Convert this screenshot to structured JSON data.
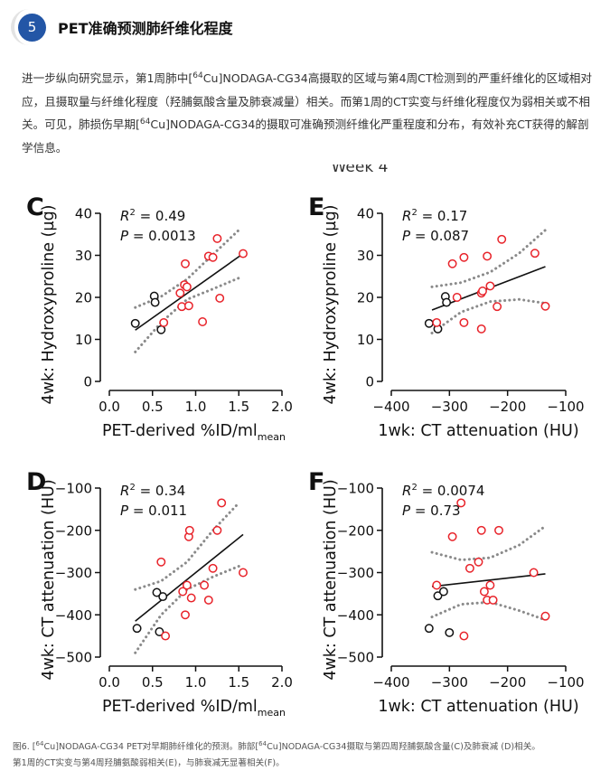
{
  "header": {
    "number": "5",
    "title": "PET准确预测肺纤维化程度"
  },
  "intro": {
    "s1": "进一步纵向研究显示，第1周肺中[",
    "sup1": "64",
    "s2": "Cu]NODAGA-CG34高摄取的区域与第4周CT检测到的严重纤维化的区域相对应，且摄取量与纤维化程度（羟脯氨酸含量及肺衰减量）相关。而第1周的CT实变与纤维化程度仅为弱相关或不相关。可见，肺损伤早期[",
    "sup2": "64",
    "s3": "Cu]NODAGA-CG34的摄取可准确预测纤维化严重程度和分布，有效补充CT获得的解剖学信息。"
  },
  "figure": {
    "top_overflow_text": "Week 4"
  },
  "colors": {
    "red": "#e8232a",
    "black": "#111111",
    "band": "#8a8a8a"
  },
  "chart_data": [
    {
      "panel": "C",
      "type": "scatter",
      "x_label": "PET-derived %ID/ml",
      "x_label_sub": "mean",
      "y_label": "4wk: Hydroxyproline (µg)",
      "xlim": [
        0.0,
        2.0
      ],
      "ylim": [
        0,
        40
      ],
      "x_ticks": [
        0.0,
        0.5,
        1.0,
        1.5,
        2.0
      ],
      "x_tick_labels": [
        "0.0",
        "0.5",
        "1.0",
        "1.5",
        "2.0"
      ],
      "y_ticks": [
        0,
        10,
        20,
        30,
        40
      ],
      "y_tick_labels": [
        "0",
        "10",
        "20",
        "30",
        "40"
      ],
      "stat_r2": "= 0.49",
      "stat_p": "= 0.0013",
      "fit": [
        [
          0.3,
          12.2
        ],
        [
          1.55,
          30.4
        ]
      ],
      "band_upper": [
        [
          0.3,
          17.6
        ],
        [
          0.6,
          20.2
        ],
        [
          0.9,
          24.3
        ],
        [
          1.2,
          30.2
        ],
        [
          1.5,
          36.0
        ]
      ],
      "band_lower": [
        [
          0.3,
          7.0
        ],
        [
          0.6,
          14.0
        ],
        [
          0.9,
          19.5
        ],
        [
          1.2,
          22.0
        ],
        [
          1.5,
          24.6
        ]
      ],
      "series": [
        {
          "group": "black",
          "points": [
            [
              0.3,
              13.8
            ],
            [
              0.52,
              20.3
            ],
            [
              0.53,
              18.8
            ],
            [
              0.6,
              12.3
            ]
          ]
        },
        {
          "group": "red",
          "points": [
            [
              0.63,
              14.0
            ],
            [
              0.82,
              21.0
            ],
            [
              0.84,
              17.8
            ],
            [
              0.87,
              23.0
            ],
            [
              0.88,
              28.0
            ],
            [
              0.9,
              22.5
            ],
            [
              0.92,
              18.0
            ],
            [
              1.08,
              14.2
            ],
            [
              1.15,
              29.8
            ],
            [
              1.2,
              29.5
            ],
            [
              1.25,
              34.0
            ],
            [
              1.28,
              19.8
            ],
            [
              1.55,
              30.4
            ]
          ]
        }
      ]
    },
    {
      "panel": "E",
      "type": "scatter",
      "x_label": "1wk: CT attenuation (HU)",
      "x_label_sub": "",
      "y_label": "4wk: Hydroxyproline (µg)",
      "xlim": [
        -400,
        -100
      ],
      "ylim": [
        0,
        40
      ],
      "x_ticks": [
        -400,
        -300,
        -200,
        -100
      ],
      "x_tick_labels": [
        "−400",
        "−300",
        "−200",
        "−100"
      ],
      "y_ticks": [
        0,
        10,
        20,
        30,
        40
      ],
      "y_tick_labels": [
        "0",
        "10",
        "20",
        "30",
        "40"
      ],
      "stat_r2": "= 0.17",
      "stat_p": "= 0.087",
      "fit": [
        [
          -330,
          17.0
        ],
        [
          -135,
          27.3
        ]
      ],
      "band_upper": [
        [
          -330,
          22.5
        ],
        [
          -280,
          23.5
        ],
        [
          -230,
          26.0
        ],
        [
          -180,
          30.5
        ],
        [
          -135,
          36.0
        ]
      ],
      "band_lower": [
        [
          -330,
          11.5
        ],
        [
          -280,
          16.5
        ],
        [
          -230,
          19.0
        ],
        [
          -180,
          19.5
        ],
        [
          -135,
          18.6
        ]
      ],
      "series": [
        {
          "group": "black",
          "points": [
            [
              -335,
              13.8
            ],
            [
              -320,
              12.5
            ],
            [
              -307,
              20.2
            ],
            [
              -305,
              18.8
            ]
          ]
        },
        {
          "group": "red",
          "points": [
            [
              -322,
              14.0
            ],
            [
              -295,
              28.0
            ],
            [
              -287,
              20.0
            ],
            [
              -275,
              29.5
            ],
            [
              -275,
              14.0
            ],
            [
              -245,
              21.0
            ],
            [
              -243,
              21.5
            ],
            [
              -245,
              12.5
            ],
            [
              -235,
              29.8
            ],
            [
              -230,
              22.7
            ],
            [
              -218,
              17.8
            ],
            [
              -210,
              33.8
            ],
            [
              -153,
              30.5
            ],
            [
              -135,
              17.9
            ]
          ]
        }
      ]
    },
    {
      "panel": "D",
      "type": "scatter",
      "x_label": "PET-derived %ID/ml",
      "x_label_sub": "mean",
      "y_label": "4wk: CT attenuation (HU)",
      "xlim": [
        0.0,
        2.0
      ],
      "ylim": [
        -500,
        -100
      ],
      "x_ticks": [
        0.0,
        0.5,
        1.0,
        1.5,
        2.0
      ],
      "x_tick_labels": [
        "0.0",
        "0.5",
        "1.0",
        "1.5",
        "2.0"
      ],
      "y_ticks": [
        -500,
        -400,
        -300,
        -200,
        -100
      ],
      "y_tick_labels": [
        "−500",
        "−400",
        "−300",
        "−200",
        "−100"
      ],
      "stat_r2": "= 0.34",
      "stat_p": "= 0.011",
      "fit": [
        [
          0.3,
          -415
        ],
        [
          1.55,
          -210
        ]
      ],
      "band_upper": [
        [
          0.3,
          -340
        ],
        [
          0.6,
          -320
        ],
        [
          0.9,
          -275
        ],
        [
          1.2,
          -200
        ],
        [
          1.5,
          -135
        ]
      ],
      "band_lower": [
        [
          0.3,
          -490
        ],
        [
          0.6,
          -400
        ],
        [
          0.9,
          -340
        ],
        [
          1.2,
          -310
        ],
        [
          1.5,
          -285
        ]
      ],
      "series": [
        {
          "group": "black",
          "points": [
            [
              0.32,
              -432
            ],
            [
              0.55,
              -347
            ],
            [
              0.58,
              -440
            ],
            [
              0.62,
              -357
            ]
          ]
        },
        {
          "group": "red",
          "points": [
            [
              0.6,
              -275
            ],
            [
              0.65,
              -450
            ],
            [
              0.85,
              -345
            ],
            [
              0.88,
              -400
            ],
            [
              0.9,
              -330
            ],
            [
              0.92,
              -215
            ],
            [
              0.93,
              -200
            ],
            [
              0.95,
              -360
            ],
            [
              1.1,
              -330
            ],
            [
              1.15,
              -365
            ],
            [
              1.2,
              -290
            ],
            [
              1.25,
              -200
            ],
            [
              1.3,
              -135
            ],
            [
              1.55,
              -300
            ]
          ]
        }
      ]
    },
    {
      "panel": "F",
      "type": "scatter",
      "x_label": "1wk: CT attenuation (HU)",
      "x_label_sub": "",
      "y_label": "4wk: CT attenuation (HU)",
      "xlim": [
        -400,
        -100
      ],
      "ylim": [
        -500,
        -100
      ],
      "x_ticks": [
        -400,
        -300,
        -200,
        -100
      ],
      "x_tick_labels": [
        "−400",
        "−300",
        "−200",
        "−100"
      ],
      "y_ticks": [
        -500,
        -400,
        -300,
        -200,
        -100
      ],
      "y_tick_labels": [
        "−500",
        "−400",
        "−300",
        "−200",
        "−100"
      ],
      "stat_r2": "= 0.0074",
      "stat_p": "= 0.73",
      "fit": [
        [
          -330,
          -333
        ],
        [
          -135,
          -303
        ]
      ],
      "band_upper": [
        [
          -330,
          -252
        ],
        [
          -280,
          -270
        ],
        [
          -230,
          -265
        ],
        [
          -180,
          -235
        ],
        [
          -135,
          -190
        ]
      ],
      "band_lower": [
        [
          -330,
          -405
        ],
        [
          -280,
          -375
        ],
        [
          -230,
          -370
        ],
        [
          -180,
          -390
        ],
        [
          -135,
          -412
        ]
      ],
      "series": [
        {
          "group": "black",
          "points": [
            [
              -335,
              -432
            ],
            [
              -320,
              -355
            ],
            [
              -310,
              -345
            ],
            [
              -300,
              -442
            ]
          ]
        },
        {
          "group": "red",
          "points": [
            [
              -322,
              -330
            ],
            [
              -295,
              -215
            ],
            [
              -280,
              -135
            ],
            [
              -275,
              -450
            ],
            [
              -265,
              -290
            ],
            [
              -250,
              -275
            ],
            [
              -245,
              -200
            ],
            [
              -240,
              -345
            ],
            [
              -235,
              -365
            ],
            [
              -230,
              -330
            ],
            [
              -225,
              -365
            ],
            [
              -215,
              -200
            ],
            [
              -155,
              -300
            ],
            [
              -135,
              -403
            ]
          ]
        }
      ]
    }
  ],
  "caption": {
    "line1_a": "图6. [",
    "line1_sup": "64",
    "line1_b": "Cu]NODAGA-CG34 PET对早期肺纤维化的预测。肺部[",
    "line1_sup2": "64",
    "line1_c": "Cu]NODAGA-CG34摄取与第四周羟脯氨酸含量(C)及肺衰减 (D)相关。",
    "line2": "第1周的CT实变与第4周羟脯氨酸弱相关(E)，与肺衰减无显著相关(F)。"
  }
}
